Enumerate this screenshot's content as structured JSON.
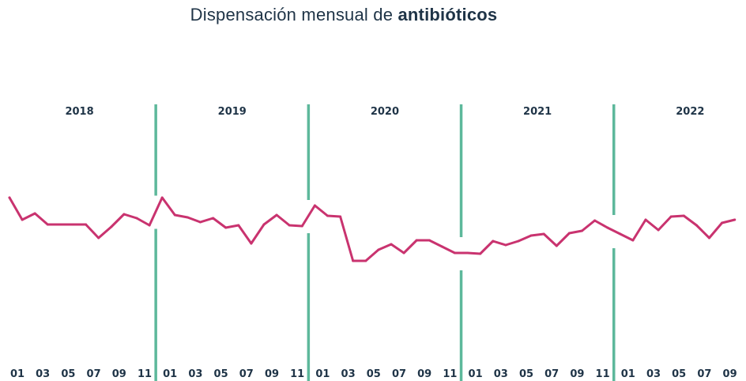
{
  "chart_data": {
    "type": "line",
    "title": "Dispensación mensual de antibióticos",
    "title_parts": {
      "regular": "Dispensación mensual de ",
      "bold": "antibióticos"
    },
    "xlabel": "",
    "ylabel": "",
    "y_axis_visible": false,
    "value_unit": "relative index (no y-axis scale shown; higher = more dispensation)",
    "grid": false,
    "legend": "none",
    "colors": {
      "line": "#c9336f",
      "separator": "#5db89b",
      "text": "#1f3447"
    },
    "years": [
      "2018",
      "2019",
      "2020",
      "2021",
      "2022"
    ],
    "tick_labels": [
      "01",
      "03",
      "05",
      "07",
      "09",
      "11"
    ],
    "series": [
      {
        "name": "Dispensación mensual",
        "values": [
          90,
          62,
          70,
          56,
          56,
          56,
          56,
          39,
          53,
          69,
          64,
          55,
          90,
          68,
          65,
          59,
          64,
          52,
          55,
          32,
          56,
          68,
          55,
          54,
          80,
          67,
          66,
          10,
          10,
          24,
          31,
          20,
          36,
          36,
          28,
          20,
          20,
          19,
          35,
          30,
          35,
          42,
          44,
          29,
          45,
          48,
          61,
          52,
          44,
          36,
          62,
          49,
          66,
          67,
          55,
          39,
          58,
          62
        ]
      }
    ]
  }
}
